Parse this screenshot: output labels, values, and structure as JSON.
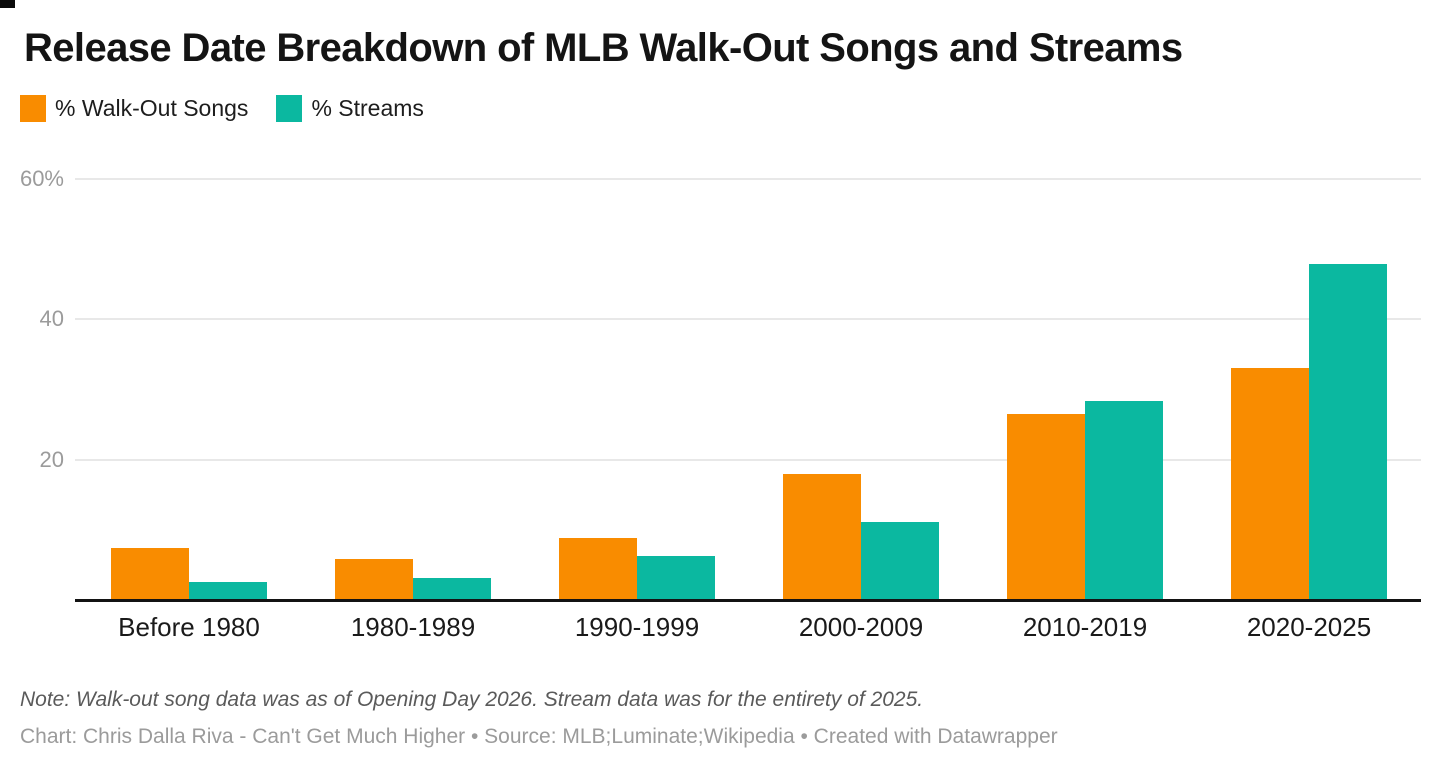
{
  "page": {
    "background": "#ffffff"
  },
  "header": {
    "title": "Release Date Breakdown of MLB Walk-Out Songs and Streams"
  },
  "chart_data": {
    "type": "bar",
    "title": "Release Date Breakdown of MLB Walk-Out Songs and Streams",
    "categories": [
      "Before 1980",
      "1980-1989",
      "1990-1999",
      "2000-2009",
      "2010-2019",
      "2020-2025"
    ],
    "series": [
      {
        "name": "% Walk-Out Songs",
        "color": "#F98C00",
        "values": [
          7.4,
          5.8,
          8.9,
          17.9,
          26.5,
          33.0
        ]
      },
      {
        "name": "% Streams",
        "color": "#0BB8A0",
        "values": [
          2.6,
          3.2,
          6.3,
          11.1,
          28.4,
          47.9
        ]
      }
    ],
    "xlabel": "",
    "ylabel": "",
    "ylim": [
      0,
      60
    ],
    "yticks": [
      {
        "value": 20,
        "label": "20"
      },
      {
        "value": 40,
        "label": "40"
      },
      {
        "value": 60,
        "label": "60%"
      }
    ],
    "grid": "horizontal-only",
    "legend_position": "top-left",
    "axis_color": "#131313",
    "gridline_color": "#e8e8e8"
  },
  "footer": {
    "note": "Note: Walk-out song data was as of Opening Day 2026. Stream data was for the entirety of 2025.",
    "credit": "Chart: Chris Dalla Riva - Can't Get Much Higher • Source: MLB;Luminate;Wikipedia • Created with Datawrapper"
  }
}
